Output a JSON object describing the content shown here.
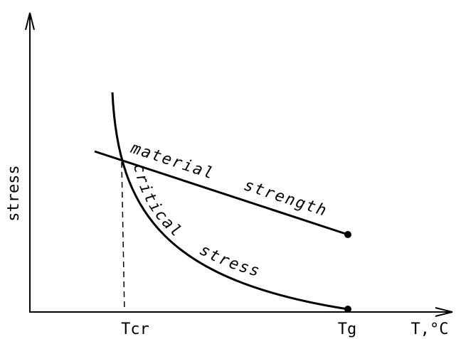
{
  "axes": {
    "y_label": "stress",
    "x_label": "T,°C",
    "x_marks": {
      "critical": "Tcr",
      "glass": "Tg"
    }
  },
  "curves": {
    "strength": "material strength",
    "critical": "critical stress"
  }
}
